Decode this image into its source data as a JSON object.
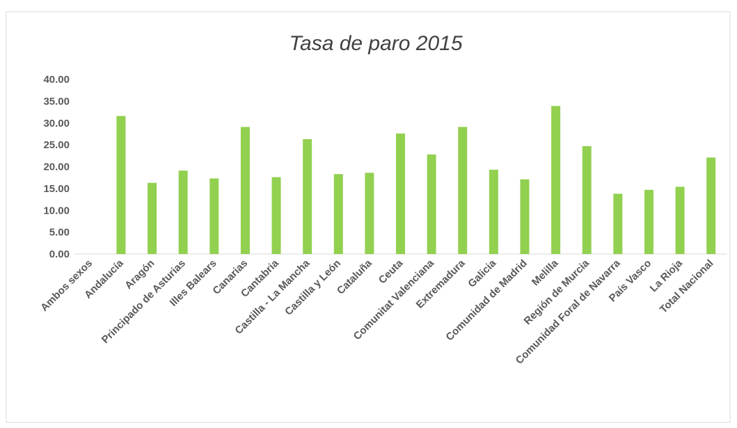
{
  "chart_data": {
    "type": "bar",
    "title": "Tasa de paro 2015",
    "categories": [
      "Ambos sexos",
      "Andalucía",
      "Aragón",
      "Principado de Asturias",
      "Illes Balears",
      "Canarias",
      "Cantabria",
      "Castilla - La Mancha",
      "Castilla y León",
      "Cataluña",
      "Ceuta",
      "Comunitat Valenciana",
      "Extremadura",
      "Galicia",
      "Comunidad de Madrid",
      "Melilla",
      "Región de Murcia",
      "Comunidad Foral de Navarra",
      "País Vasco",
      "La Rioja",
      "Total Nacional"
    ],
    "values": [
      null,
      31.6,
      16.3,
      19.1,
      17.3,
      29.1,
      17.6,
      26.3,
      18.3,
      18.6,
      27.6,
      22.8,
      29.1,
      19.3,
      17.1,
      33.9,
      24.7,
      13.8,
      14.7,
      15.4,
      22.1
    ],
    "color": "#92d050",
    "ylim": [
      0,
      40
    ],
    "yticks": [
      {
        "value": 0,
        "label": "0.00"
      },
      {
        "value": 5,
        "label": "5.00"
      },
      {
        "value": 10,
        "label": "10.00"
      },
      {
        "value": 15,
        "label": "15.00"
      },
      {
        "value": 20,
        "label": "20.00"
      },
      {
        "value": 25,
        "label": "25.00"
      },
      {
        "value": 30,
        "label": "30.00"
      },
      {
        "value": 35,
        "label": "35.00"
      },
      {
        "value": 40,
        "label": "40.00"
      }
    ],
    "grid": false
  }
}
